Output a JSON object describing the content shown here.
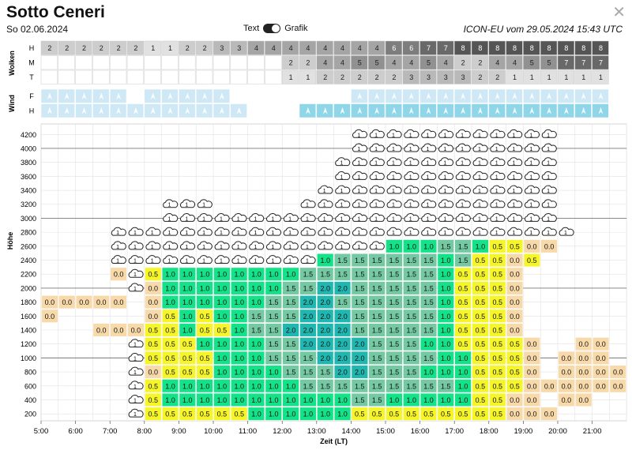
{
  "header": {
    "title": "Sotto Ceneri",
    "date": "So 02.06.2024",
    "model": "ICON-EU vom 29.05.2024 15:43 UTC",
    "toggle_left": "Text",
    "toggle_right": "Grafik",
    "close_icon": "close-icon"
  },
  "clouds": {
    "label": "Wolken",
    "rows": [
      {
        "name": "H",
        "values": [
          "2",
          "2",
          "2",
          "2",
          "2",
          "2",
          "1",
          "1",
          "2",
          "2",
          "3",
          "3",
          "4",
          "4",
          "4",
          "4",
          "4",
          "4",
          "4",
          "4",
          "6",
          "6",
          "7",
          "7",
          "8",
          "8",
          "8",
          "8",
          "8",
          "8",
          "8",
          "8",
          "8"
        ]
      },
      {
        "name": "M",
        "values": [
          "",
          "",
          "",
          "",
          "",
          "",
          "",
          "",
          "",
          "",
          "",
          "",
          "",
          "",
          "2",
          "2",
          "4",
          "4",
          "5",
          "5",
          "4",
          "4",
          "5",
          "4",
          "2",
          "2",
          "4",
          "4",
          "5",
          "5",
          "7",
          "7",
          "7"
        ]
      },
      {
        "name": "T",
        "values": [
          "",
          "",
          "",
          "",
          "",
          "",
          "",
          "",
          "",
          "",
          "",
          "",
          "",
          "",
          "1",
          "1",
          "2",
          "2",
          "2",
          "2",
          "2",
          "3",
          "3",
          "3",
          "3",
          "2",
          "2",
          "1",
          "1",
          "1",
          "1",
          "1",
          "1"
        ]
      }
    ]
  },
  "wind": {
    "label": "Wind",
    "rows": [
      {
        "name": "F",
        "values": [
          1,
          1,
          1,
          1,
          1,
          0,
          1,
          1,
          1,
          1,
          1,
          0,
          0,
          0,
          0,
          0,
          0,
          0,
          1,
          1,
          1,
          1,
          1,
          1,
          1,
          1,
          1,
          1,
          1,
          1,
          1,
          1,
          1
        ]
      },
      {
        "name": "H",
        "values": [
          1,
          1,
          1,
          1,
          1,
          1,
          1,
          1,
          1,
          1,
          1,
          1,
          0,
          0,
          0,
          2,
          2,
          2,
          2,
          2,
          2,
          2,
          2,
          2,
          2,
          2,
          2,
          2,
          2,
          2,
          2,
          2,
          2
        ]
      }
    ]
  },
  "chart_data": {
    "type": "heatmap",
    "ylabel": "Höhe",
    "xlabel": "Zeit (LT)",
    "x_ticks": [
      "5:00",
      "6:00",
      "7:00",
      "8:00",
      "9:00",
      "10:00",
      "11:00",
      "12:00",
      "13:00",
      "14:00",
      "15:00",
      "16:00",
      "17:00",
      "18:00",
      "19:00",
      "20:00",
      "21:00"
    ],
    "y_ticks": [
      4200,
      4000,
      3800,
      3600,
      3400,
      3200,
      3000,
      2800,
      2600,
      2400,
      2200,
      2000,
      1800,
      1600,
      1400,
      1200,
      1000,
      800,
      600,
      400,
      200
    ],
    "x_start": "5:00",
    "x_step_minutes": 30,
    "y_start": 200,
    "y_step": 200,
    "cloud_marker": "C",
    "legend_colors": {
      "0.0": "#f8d9a9",
      "0.5": "#f5f52a",
      "1.0": "#13e289",
      "1.5": "#74c9a3",
      "2.0": "#1fb7b0"
    },
    "rows": [
      {
        "alt": 200,
        "values": [
          "",
          "",
          "",
          "",
          "",
          "C",
          "0.5",
          "0.5",
          "0.5",
          "0.5",
          "0.5",
          "0.5",
          "1.0",
          "1.0",
          "1.0",
          "1.0",
          "1.0",
          "1.0",
          "0.5",
          "0.5",
          "0.5",
          "0.5",
          "0.5",
          "0.5",
          "0.5",
          "0.5",
          "0.5",
          "0.0",
          "0.0",
          "0.0",
          "",
          "",
          "",
          ""
        ]
      },
      {
        "alt": 400,
        "values": [
          "",
          "",
          "",
          "",
          "",
          "C",
          "0.5",
          "1.0",
          "1.0",
          "1.0",
          "1.0",
          "1.0",
          "1.0",
          "1.0",
          "1.0",
          "1.0",
          "1.0",
          "1.0",
          "1.5",
          "1.5",
          "1.0",
          "1.0",
          "1.0",
          "1.0",
          "1.0",
          "0.5",
          "0.5",
          "0.0",
          "0.0",
          "",
          "0.0",
          "0.0",
          "",
          ""
        ]
      },
      {
        "alt": 600,
        "values": [
          "",
          "",
          "",
          "",
          "",
          "C",
          "0.5",
          "1.0",
          "1.0",
          "1.0",
          "1.0",
          "1.0",
          "1.0",
          "1.0",
          "1.0",
          "1.5",
          "1.5",
          "1.5",
          "1.5",
          "1.5",
          "1.5",
          "1.5",
          "1.5",
          "1.5",
          "1.0",
          "0.5",
          "0.5",
          "0.5",
          "0.0",
          "0.0",
          "0.0",
          "0.0",
          "0.0",
          "0.0"
        ]
      },
      {
        "alt": 800,
        "values": [
          "",
          "",
          "",
          "",
          "",
          "C",
          "0.0",
          "0.5",
          "0.5",
          "0.5",
          "1.0",
          "1.0",
          "1.0",
          "1.0",
          "1.5",
          "1.5",
          "1.5",
          "2.0",
          "2.0",
          "1.5",
          "1.5",
          "1.5",
          "1.0",
          "1.0",
          "1.0",
          "0.5",
          "0.5",
          "0.5",
          "0.0",
          "",
          "0.0",
          "0.0",
          "0.0",
          "0.0"
        ]
      },
      {
        "alt": 1000,
        "values": [
          "",
          "",
          "",
          "",
          "",
          "C",
          "0.5",
          "0.5",
          "0.5",
          "0.5",
          "1.0",
          "1.0",
          "1.0",
          "1.5",
          "1.5",
          "1.5",
          "2.0",
          "2.0",
          "2.0",
          "1.5",
          "1.5",
          "1.5",
          "1.5",
          "1.0",
          "1.0",
          "0.5",
          "0.5",
          "0.5",
          "0.0",
          "",
          "0.0",
          "0.0",
          "0.0",
          ""
        ]
      },
      {
        "alt": 1200,
        "values": [
          "",
          "",
          "",
          "",
          "",
          "C",
          "0.5",
          "0.5",
          "0.5",
          "1.0",
          "1.0",
          "1.0",
          "1.0",
          "1.5",
          "1.5",
          "2.0",
          "2.0",
          "2.0",
          "2.0",
          "1.5",
          "1.5",
          "1.5",
          "1.0",
          "1.0",
          "0.5",
          "0.5",
          "0.5",
          "0.5",
          "0.0",
          "",
          "",
          "0.0",
          "0.0",
          ""
        ]
      },
      {
        "alt": 1400,
        "values": [
          "",
          "",
          "",
          "0.0",
          "0.0",
          "0.0",
          "0.5",
          "0.5",
          "1.0",
          "0.5",
          "0.5",
          "1.0",
          "1.5",
          "1.5",
          "2.0",
          "2.0",
          "2.0",
          "2.0",
          "1.5",
          "1.5",
          "1.5",
          "1.5",
          "1.5",
          "1.0",
          "0.5",
          "0.5",
          "0.5",
          "0.0",
          "",
          "",
          "",
          "",
          "",
          ""
        ]
      },
      {
        "alt": 1600,
        "values": [
          "0.0",
          "",
          "",
          "",
          "",
          "",
          "0.0",
          "0.5",
          "1.0",
          "0.5",
          "1.0",
          "1.0",
          "1.5",
          "1.5",
          "1.5",
          "2.0",
          "2.0",
          "2.0",
          "1.5",
          "1.5",
          "1.5",
          "1.5",
          "1.5",
          "1.0",
          "0.5",
          "0.5",
          "0.5",
          "0.0",
          "",
          "",
          "",
          "",
          "",
          ""
        ]
      },
      {
        "alt": 1800,
        "values": [
          "0.0",
          "0.0",
          "0.0",
          "0.0",
          "0.0",
          "",
          "0.0",
          "1.0",
          "1.0",
          "1.0",
          "1.0",
          "1.0",
          "1.0",
          "1.5",
          "1.5",
          "2.0",
          "2.0",
          "1.5",
          "1.5",
          "1.5",
          "1.5",
          "1.5",
          "1.5",
          "1.0",
          "0.5",
          "0.5",
          "0.5",
          "0.0",
          "",
          "",
          "",
          "",
          "",
          ""
        ]
      },
      {
        "alt": 2000,
        "values": [
          "",
          "",
          "",
          "",
          "",
          "C",
          "0.0",
          "1.0",
          "1.0",
          "1.0",
          "1.0",
          "1.0",
          "1.0",
          "1.0",
          "1.5",
          "1.5",
          "2.0",
          "2.0",
          "1.5",
          "1.5",
          "1.5",
          "1.5",
          "1.5",
          "1.0",
          "0.5",
          "0.5",
          "0.5",
          "0.0",
          "",
          "",
          "",
          "",
          "",
          ""
        ]
      },
      {
        "alt": 2200,
        "values": [
          "",
          "",
          "",
          "",
          "0.0",
          "C",
          "0.5",
          "1.0",
          "1.0",
          "1.0",
          "1.0",
          "1.0",
          "1.0",
          "1.0",
          "1.0",
          "1.5",
          "1.5",
          "1.5",
          "1.5",
          "1.5",
          "1.5",
          "1.5",
          "1.5",
          "1.0",
          "0.5",
          "0.5",
          "0.5",
          "0.0",
          "",
          "",
          "",
          "",
          "",
          ""
        ]
      },
      {
        "alt": 2400,
        "values": [
          "",
          "",
          "",
          "",
          "C",
          "C",
          "C",
          "C",
          "C",
          "C",
          "C",
          "C",
          "C",
          "C",
          "C",
          "C",
          "1.0",
          "1.5",
          "1.5",
          "1.5",
          "1.5",
          "1.5",
          "1.5",
          "1.0",
          "1.5",
          "0.5",
          "0.5",
          "0.0",
          "0.5",
          "",
          "",
          "",
          "",
          ""
        ]
      },
      {
        "alt": 2600,
        "values": [
          "",
          "",
          "",
          "",
          "C",
          "C",
          "C",
          "C",
          "C",
          "C",
          "C",
          "C",
          "C",
          "C",
          "C",
          "C",
          "C",
          "C",
          "C",
          "C",
          "1.0",
          "1.0",
          "1.0",
          "1.5",
          "1.5",
          "1.0",
          "0.5",
          "0.5",
          "0.0",
          "0.0",
          "",
          "",
          "",
          ""
        ]
      },
      {
        "alt": 2800,
        "values": [
          "",
          "",
          "",
          "",
          "C",
          "C",
          "C",
          "C",
          "C",
          "C",
          "C",
          "C",
          "C",
          "C",
          "C",
          "C",
          "C",
          "C",
          "C",
          "C",
          "C",
          "C",
          "C",
          "C",
          "C",
          "C",
          "C",
          "C",
          "C",
          "C",
          "C",
          "",
          "",
          ""
        ]
      },
      {
        "alt": 3000,
        "values": [
          "",
          "",
          "",
          "",
          "",
          "",
          "",
          "C",
          "C",
          "C",
          "C",
          "C",
          "C",
          "C",
          "C",
          "C",
          "C",
          "C",
          "C",
          "C",
          "C",
          "C",
          "C",
          "C",
          "C",
          "C",
          "C",
          "C",
          "C",
          "C",
          "",
          "",
          "",
          ""
        ]
      },
      {
        "alt": 3200,
        "values": [
          "",
          "",
          "",
          "",
          "",
          "",
          "",
          "C",
          "C",
          "C",
          "",
          "",
          "",
          "",
          "",
          "C",
          "C",
          "C",
          "C",
          "C",
          "C",
          "C",
          "C",
          "C",
          "C",
          "C",
          "C",
          "C",
          "C",
          "C",
          "",
          "",
          "",
          ""
        ]
      },
      {
        "alt": 3400,
        "values": [
          "",
          "",
          "",
          "",
          "",
          "",
          "",
          "",
          "",
          "",
          "",
          "",
          "",
          "",
          "",
          "",
          "C",
          "C",
          "C",
          "C",
          "C",
          "C",
          "C",
          "C",
          "C",
          "C",
          "C",
          "C",
          "C",
          "C",
          "",
          "",
          "",
          ""
        ]
      },
      {
        "alt": 3600,
        "values": [
          "",
          "",
          "",
          "",
          "",
          "",
          "",
          "",
          "",
          "",
          "",
          "",
          "",
          "",
          "",
          "",
          "",
          "C",
          "C",
          "C",
          "C",
          "C",
          "C",
          "C",
          "C",
          "C",
          "C",
          "C",
          "C",
          "C",
          "",
          "",
          "",
          ""
        ]
      },
      {
        "alt": 3800,
        "values": [
          "",
          "",
          "",
          "",
          "",
          "",
          "",
          "",
          "",
          "",
          "",
          "",
          "",
          "",
          "",
          "",
          "",
          "C",
          "C",
          "C",
          "C",
          "C",
          "C",
          "C",
          "C",
          "C",
          "C",
          "C",
          "C",
          "C",
          "",
          "",
          "",
          ""
        ]
      },
      {
        "alt": 4000,
        "values": [
          "",
          "",
          "",
          "",
          "",
          "",
          "",
          "",
          "",
          "",
          "",
          "",
          "",
          "",
          "",
          "",
          "",
          "",
          "C",
          "C",
          "C",
          "C",
          "C",
          "C",
          "C",
          "C",
          "C",
          "C",
          "C",
          "C",
          "",
          "",
          "",
          ""
        ]
      },
      {
        "alt": 4200,
        "values": [
          "",
          "",
          "",
          "",
          "",
          "",
          "",
          "",
          "",
          "",
          "",
          "",
          "",
          "",
          "",
          "",
          "",
          "",
          "C",
          "C",
          "C",
          "C",
          "C",
          "C",
          "C",
          "C",
          "C",
          "C",
          "C",
          "C",
          "",
          "",
          "",
          ""
        ]
      }
    ]
  }
}
